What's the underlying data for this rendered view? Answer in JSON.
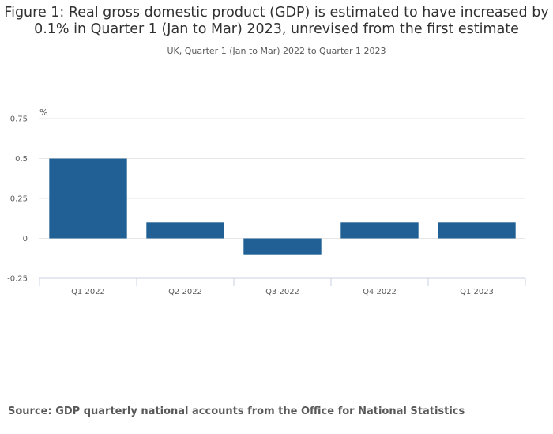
{
  "title": "Figure 1: Real gross domestic product (GDP) is estimated to have increased by 0.1% in Quarter 1 (Jan to Mar) 2023, unrevised from the first estimate",
  "subtitle": "UK, Quarter 1 (Jan to Mar) 2022 to Quarter 1 2023",
  "source": "Source: GDP quarterly national accounts from the Office for National Statistics",
  "colors": {
    "bar": "#206095",
    "grid": "#e6e6e6",
    "axis": "#c9d2e0"
  },
  "chart_data": {
    "type": "bar",
    "categories": [
      "Q1 2022",
      "Q2 2022",
      "Q3 2022",
      "Q4 2022",
      "Q1 2023"
    ],
    "values": [
      0.5,
      0.1,
      -0.1,
      0.1,
      0.1
    ],
    "ylabel": "%",
    "ylim": [
      -0.25,
      0.75
    ],
    "yticks": [
      -0.25,
      0,
      0.25,
      0.5,
      0.75
    ],
    "ytick_labels": [
      "-0.25",
      "0",
      "0.25",
      "0.5",
      "0.75"
    ],
    "grid": true
  }
}
